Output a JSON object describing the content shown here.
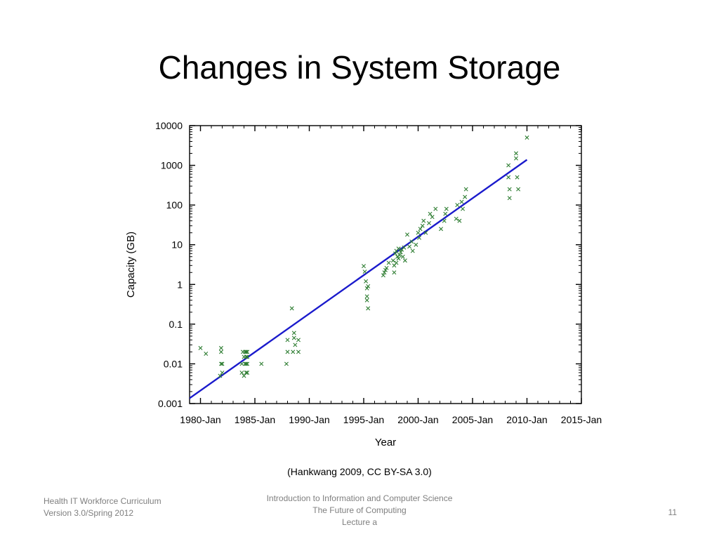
{
  "slide": {
    "title": "Changes in System Storage",
    "citation": "(Hankwang 2009, CC BY-SA 3.0)",
    "footer_left": [
      "Health IT Workforce Curriculum",
      "Version 3.0/Spring 2012"
    ],
    "footer_center": [
      "Introduction to Information and Computer Science",
      "The Future of Computing",
      "Lecture a"
    ],
    "page_number": "11"
  },
  "chart_data": {
    "type": "scatter",
    "title": "",
    "xlabel": "Year",
    "ylabel": "Capacity (GB)",
    "x_scale": "linear",
    "y_scale": "log",
    "xlim": [
      1979,
      2015
    ],
    "ylim": [
      0.001,
      10000
    ],
    "x_ticks": [
      1980,
      1985,
      1990,
      1995,
      2000,
      2005,
      2010,
      2015
    ],
    "x_tick_labels": [
      "1980-Jan",
      "1985-Jan",
      "1990-Jan",
      "1995-Jan",
      "2000-Jan",
      "2005-Jan",
      "2010-Jan",
      "2015-Jan"
    ],
    "y_ticks": [
      0.001,
      0.01,
      0.1,
      1,
      10,
      100,
      1000,
      10000
    ],
    "y_tick_labels": [
      "0.001",
      "0.01",
      "0.1",
      "1",
      "10",
      "100",
      "1000",
      "10000"
    ],
    "grid": false,
    "colors": {
      "points": "#2e7d32",
      "trend": "#1a1acc",
      "axis": "#000000"
    },
    "series": [
      {
        "marker": "x",
        "x": [
          1980.0,
          1980.5,
          1981.8,
          1981.9,
          1981.9,
          1981.9,
          1982.0,
          1982.0,
          1983.8,
          1983.8,
          1983.9,
          1984.0,
          1984.0,
          1984.1,
          1984.1,
          1984.2,
          1984.2,
          1984.2,
          1984.2,
          1984.3,
          1984.3,
          1984.3,
          1984.3,
          1985.6,
          1987.9,
          1988.0,
          1988.0,
          1988.4,
          1988.5,
          1988.6,
          1988.6,
          1988.7,
          1989.0,
          1989.0,
          1995.0,
          1995.1,
          1995.2,
          1995.3,
          1995.3,
          1995.3,
          1995.4,
          1995.4,
          1996.8,
          1996.9,
          1997.0,
          1997.1,
          1997.3,
          1997.7,
          1997.8,
          1997.8,
          1997.9,
          1998.0,
          1998.0,
          1998.1,
          1998.2,
          1998.2,
          1998.3,
          1998.4,
          1998.5,
          1998.6,
          1998.7,
          1998.8,
          1999.0,
          1999.2,
          1999.4,
          1999.5,
          1999.8,
          2000.0,
          2000.1,
          2000.2,
          2000.4,
          2000.5,
          2000.7,
          2001.0,
          2001.1,
          2001.3,
          2001.6,
          2002.1,
          2002.4,
          2002.5,
          2002.6,
          2003.5,
          2003.6,
          2003.8,
          2004.0,
          2004.1,
          2004.3,
          2004.4,
          2008.3,
          2008.3,
          2008.4,
          2008.4,
          2009.0,
          2009.0,
          2009.1,
          2009.2,
          2010.0
        ],
        "y": [
          0.025,
          0.018,
          0.005,
          0.01,
          0.02,
          0.025,
          0.006,
          0.01,
          0.006,
          0.01,
          0.02,
          0.005,
          0.015,
          0.01,
          0.02,
          0.006,
          0.01,
          0.015,
          0.02,
          0.006,
          0.01,
          0.015,
          0.02,
          0.01,
          0.01,
          0.02,
          0.04,
          0.25,
          0.02,
          0.06,
          0.045,
          0.03,
          0.02,
          0.04,
          2.9,
          2.1,
          1.2,
          0.8,
          0.5,
          0.4,
          0.25,
          0.9,
          1.7,
          2.0,
          2.3,
          2.6,
          3.5,
          4.0,
          2.0,
          3.0,
          6.0,
          3.5,
          7.0,
          5.0,
          8.0,
          4.5,
          5.5,
          6.5,
          7.5,
          5.0,
          8.5,
          4.0,
          18.0,
          9.0,
          12.0,
          7.0,
          10.0,
          20.0,
          15.0,
          25.0,
          30.0,
          40.0,
          20.0,
          35.0,
          60.0,
          50.0,
          80.0,
          25.0,
          40.0,
          60.0,
          80.0,
          45.0,
          100.0,
          40.0,
          120.0,
          80.0,
          160.0,
          250.0,
          1000.0,
          500.0,
          250.0,
          150.0,
          2000.0,
          1500.0,
          500.0,
          250.0,
          5000.0
        ]
      }
    ],
    "trend_line": {
      "x": [
        1978.9,
        2010.0
      ],
      "y": [
        0.0013,
        1380.0
      ]
    }
  }
}
